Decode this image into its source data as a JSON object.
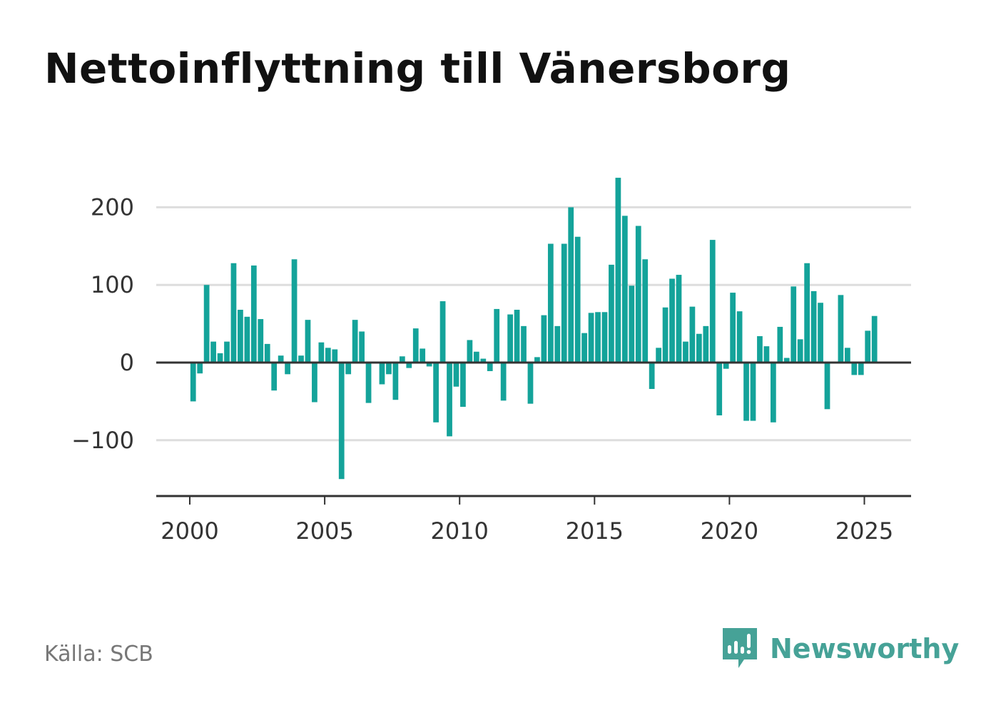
{
  "title": "Nettoinflyttning till Vänersborg",
  "source": "Källa: SCB",
  "brand": {
    "name": "Newsworthy",
    "icon": "newsworthy-logo-icon",
    "color": "#46a297"
  },
  "colors": {
    "bar": "#14a39a",
    "grid": "#dddddd",
    "zero": "#333333",
    "axis": "#333333",
    "text": "#333333"
  },
  "chart_data": {
    "type": "bar",
    "title": "Nettoinflyttning till Vänersborg",
    "xlabel": "",
    "ylabel": "",
    "x_ticks": [
      "2000",
      "2005",
      "2010",
      "2015",
      "2020",
      "2025"
    ],
    "y_ticks": [
      200,
      100,
      0,
      -100
    ],
    "y_tick_labels": [
      "200",
      "100",
      "0",
      "−100"
    ],
    "ylim": [
      -173,
      240
    ],
    "xlim": [
      1998.75,
      2026.75
    ],
    "grid": true,
    "legend": "none",
    "x_start": 2000.125,
    "x_step": 0.25,
    "values": [
      -50,
      -14,
      100,
      27,
      12,
      27,
      128,
      68,
      59,
      125,
      56,
      24,
      -36,
      9,
      -15,
      133,
      9,
      55,
      -51,
      26,
      19,
      17,
      -150,
      -15,
      55,
      40,
      -52,
      0,
      -28,
      -15,
      -48,
      8,
      -7,
      44,
      18,
      -5,
      -77,
      79,
      -95,
      -31,
      -57,
      29,
      14,
      5,
      -11,
      69,
      -49,
      62,
      68,
      47,
      -53,
      7,
      61,
      153,
      47,
      153,
      200,
      162,
      38,
      64,
      65,
      65,
      126,
      238,
      189,
      99,
      176,
      133,
      -34,
      19,
      71,
      108,
      113,
      27,
      72,
      37,
      47,
      158,
      -68,
      -8,
      90,
      66,
      -75,
      -75,
      34,
      21,
      -77,
      46,
      6,
      98,
      30,
      128,
      92,
      77,
      -60,
      0,
      87,
      19,
      -16,
      -16,
      41,
      60
    ]
  }
}
